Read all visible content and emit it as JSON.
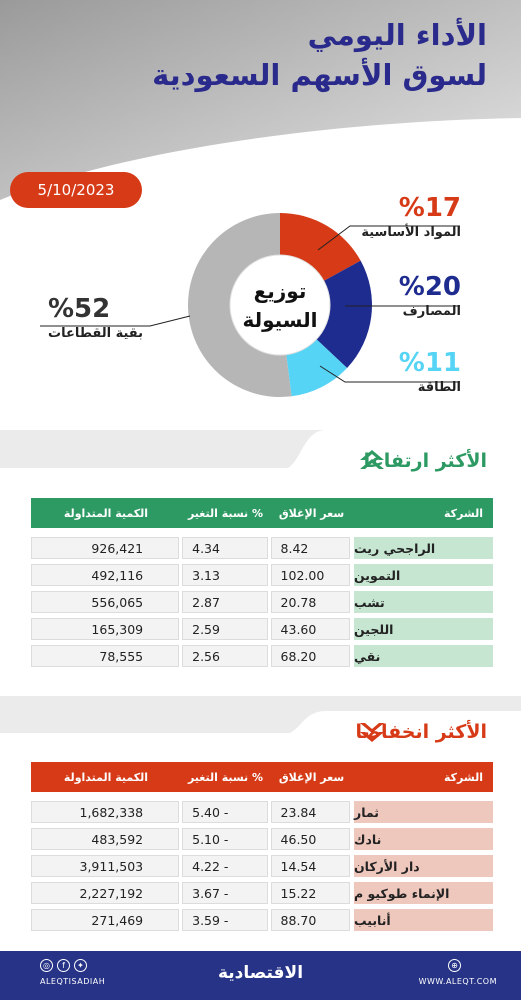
{
  "header": {
    "title_line1": "الأداء اليومي",
    "title_line2": "لسوق الأسهم السعودية",
    "date": "5/10/2023"
  },
  "colors": {
    "red": "#d63a17",
    "navy": "#1f2c8f",
    "cyan": "#56d4f5",
    "gray": "#b6b6b6",
    "green": "#2e9a63",
    "title_blue": "#2a2a8c",
    "green_row": "#c7e6d2",
    "red_row": "#efc8bd"
  },
  "chart_data": {
    "type": "pie",
    "title": "توزيع السيولة",
    "center_line1": "توزيع",
    "center_line2": "السيولة",
    "slices": [
      {
        "label": "المواد الأساسية",
        "value": 17,
        "display": "%17",
        "color": "#d63a17"
      },
      {
        "label": "المصارف",
        "value": 20,
        "display": "%20",
        "color": "#1f2c8f"
      },
      {
        "label": "الطاقة",
        "value": 11,
        "display": "%11",
        "color": "#56d4f5"
      },
      {
        "label": "بقية القطاعات",
        "value": 52,
        "display": "%52",
        "color": "#b6b6b6"
      }
    ]
  },
  "gainers": {
    "title": "الأكثر ارتفاعا",
    "arrow_icon": "double-chevron-up-icon",
    "headers": {
      "company": "الشركة",
      "close": "سعر الإغلاق",
      "change": "نسبة التغير %",
      "volume": "الكمية المتداولة"
    },
    "rows": [
      {
        "company": "الراجحي ريت",
        "close": "8.42",
        "change": "4.34",
        "volume": "926,421"
      },
      {
        "company": "التموين",
        "close": "102.00",
        "change": "3.13",
        "volume": "492,116"
      },
      {
        "company": "تشب",
        "close": "20.78",
        "change": "2.87",
        "volume": "556,065"
      },
      {
        "company": "اللجين",
        "close": "43.60",
        "change": "2.59",
        "volume": "165,309"
      },
      {
        "company": "نقي",
        "close": "68.20",
        "change": "2.56",
        "volume": "78,555"
      }
    ]
  },
  "losers": {
    "title": "الأكثر انخفاضا",
    "arrow_icon": "double-chevron-down-icon",
    "headers": {
      "company": "الشركة",
      "close": "سعر الإغلاق",
      "change": "نسبة التغير %",
      "volume": "الكمية المتداولة"
    },
    "rows": [
      {
        "company": "ثمار",
        "close": "23.84",
        "change": "5.40 -",
        "volume": "1,682,338"
      },
      {
        "company": "نادك",
        "close": "46.50",
        "change": "5.10 -",
        "volume": "483,592"
      },
      {
        "company": "دار الأركان",
        "close": "14.54",
        "change": "4.22 -",
        "volume": "3,911,503"
      },
      {
        "company": "الإنماء طوكيو م",
        "close": "15.22",
        "change": "3.67 -",
        "volume": "2,227,192"
      },
      {
        "company": "أنابيب",
        "close": "88.70",
        "change": "3.59 -",
        "volume": "271,469"
      }
    ]
  },
  "footer": {
    "handle": "ALEQTISADIAH",
    "brand": "الاقتصادية",
    "website": "WWW.ALEQT.COM",
    "social_icons": [
      "instagram-icon",
      "facebook-icon",
      "twitter-icon"
    ]
  }
}
